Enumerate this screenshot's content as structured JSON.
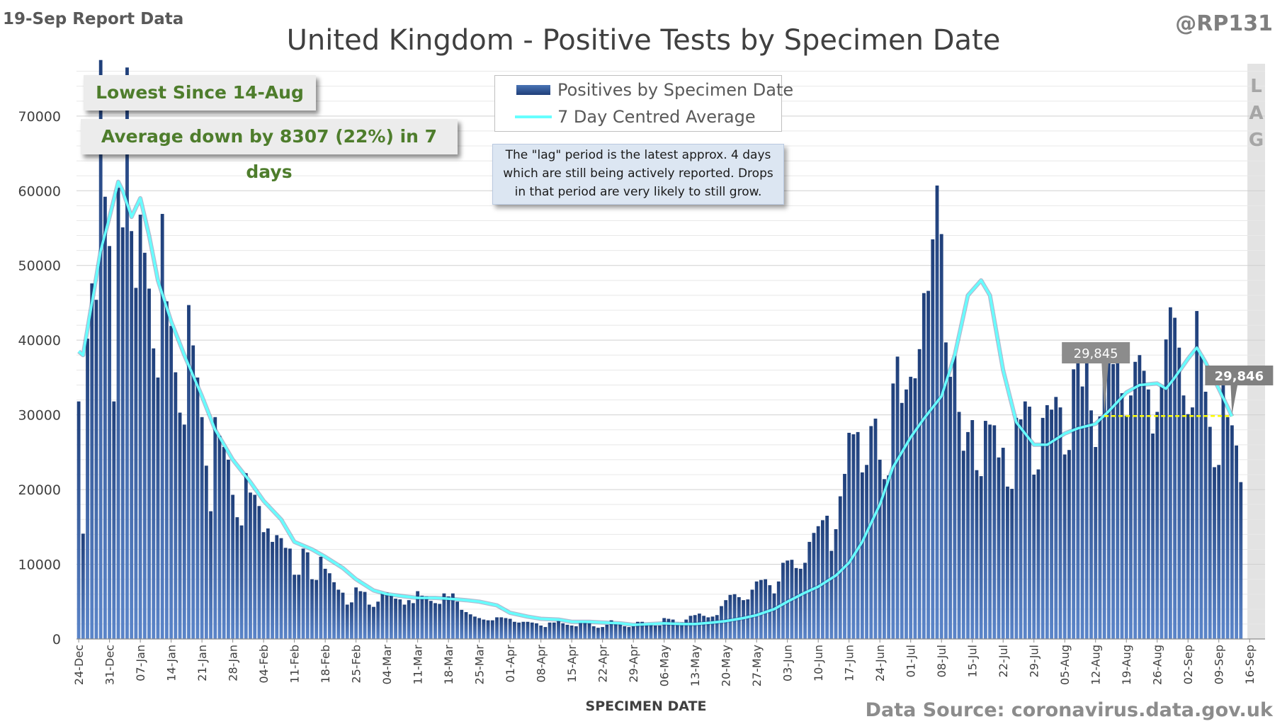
{
  "header": {
    "report_label": "19-Sep Report Data",
    "handle": "@RP131"
  },
  "callouts": {
    "lowest": "Lowest Since 14-Aug",
    "average": "Average down by 8307 (22%) in 7 days"
  },
  "note": {
    "lines": [
      "The \"lag\" period is the latest approx. 4 days",
      "which are still being actively reported. Drops",
      "in that period are very likely to still grow."
    ]
  },
  "lag_letters": [
    "L",
    "A",
    "G"
  ],
  "footer": {
    "source": "Data Source: coronavirus.data.gov.uk"
  },
  "colors": {
    "bar": "#2e5597",
    "average_line": "#66ffff",
    "reference_line": "#ffff00",
    "lag_band": "#d9d9d9"
  },
  "chart_data": {
    "type": "bar",
    "title": "United Kingdom - Positive Tests by Specimen Date",
    "xlabel": "SPECIMEN DATE",
    "ylabel": "",
    "ylim": [
      0,
      77000
    ],
    "yticks": [
      0,
      10000,
      20000,
      30000,
      40000,
      50000,
      60000,
      70000
    ],
    "x_start": "24-Dec",
    "x_end": "19-Sep",
    "x_tick_labels": [
      "24-Dec",
      "31-Dec",
      "07-Jan",
      "14-Jan",
      "21-Jan",
      "28-Jan",
      "04-Feb",
      "11-Feb",
      "18-Feb",
      "25-Feb",
      "04-Mar",
      "11-Mar",
      "18-Mar",
      "25-Mar",
      "01-Apr",
      "08-Apr",
      "15-Apr",
      "22-Apr",
      "29-Apr",
      "06-May",
      "13-May",
      "20-May",
      "27-May",
      "03-Jun",
      "10-Jun",
      "17-Jun",
      "24-Jun",
      "01-Jul",
      "08-Jul",
      "15-Jul",
      "22-Jul",
      "29-Jul",
      "05-Aug",
      "12-Aug",
      "19-Aug",
      "26-Aug",
      "02-Sep",
      "09-Sep",
      "16-Sep"
    ],
    "grid": true,
    "legend_position": "top-center",
    "series": [
      {
        "name": "Positives by Specimen Date",
        "type": "bar",
        "values": [
          31800,
          14100,
          40200,
          47600,
          45400,
          77500,
          59200,
          52600,
          31800,
          60400,
          55100,
          76500,
          54600,
          47000,
          56800,
          51700,
          46900,
          38900,
          35000,
          56900,
          45200,
          41900,
          35700,
          30300,
          28700,
          44700,
          39300,
          35000,
          29700,
          23200,
          17100,
          29700,
          27200,
          25700,
          24000,
          19300,
          16300,
          15200,
          22200,
          19600,
          19300,
          17800,
          14300,
          14800,
          13000,
          13900,
          13500,
          12200,
          12100,
          8600,
          8600,
          12100,
          11600,
          8000,
          7900,
          11000,
          9400,
          8800,
          7600,
          6600,
          6200,
          4600,
          4900,
          6900,
          6400,
          6300,
          4600,
          4300,
          5000,
          6200,
          6200,
          5900,
          5400,
          5300,
          4600,
          5200,
          4800,
          6400,
          5800,
          5700,
          5100,
          4800,
          4700,
          6100,
          5700,
          6100,
          5000,
          3900,
          3600,
          3300,
          3000,
          2800,
          2600,
          2500,
          2500,
          2900,
          2900,
          2800,
          2700,
          2300,
          2200,
          2300,
          2300,
          2200,
          2100,
          1800,
          1600,
          2200,
          2200,
          2400,
          2100,
          1900,
          1800,
          1700,
          2400,
          2300,
          2100,
          1700,
          1500,
          1600,
          1900,
          2500,
          2200,
          2100,
          1700,
          1600,
          1700,
          2300,
          2300,
          2100,
          1900,
          1800,
          1800,
          2800,
          2700,
          2600,
          2200,
          2200,
          2600,
          3100,
          3200,
          3400,
          3100,
          2900,
          3000,
          3200,
          4400,
          5200,
          5900,
          6000,
          5600,
          5200,
          5300,
          6600,
          7700,
          7900,
          8000,
          7200,
          6100,
          7700,
          10200,
          10500,
          10600,
          9500,
          9400,
          10200,
          13000,
          14200,
          15100,
          15900,
          16500,
          11800,
          14700,
          19100,
          22100,
          27600,
          27400,
          27700,
          22300,
          23300,
          28500,
          29500,
          24000,
          21400,
          21900,
          34200,
          37800,
          31600,
          33400,
          35100,
          34900,
          38800,
          46300,
          46600,
          53500,
          60700,
          54200,
          39700,
          35100,
          37900,
          30400,
          25200,
          27700,
          29300,
          22600,
          21800,
          29200,
          28700,
          28600,
          24300,
          25600,
          20400,
          20100,
          29600,
          29400,
          31800,
          31100,
          22000,
          22700,
          29600,
          31300,
          30700,
          32400,
          31000,
          24700,
          25300,
          36100,
          37200,
          33800,
          37900,
          30600,
          25700,
          29800,
          36800,
          38600,
          36800,
          37600,
          32900,
          29900,
          32600,
          37100,
          38000,
          35900,
          33400,
          27500,
          30400,
          33800,
          40100,
          44400,
          43000,
          39000,
          32600,
          30100,
          31000,
          43900,
          37900,
          33100,
          28400,
          23000,
          23300,
          34100,
          29700,
          28600,
          25900,
          21000
        ]
      },
      {
        "name": "7 Day Centred Average",
        "type": "line",
        "values": [
          {
            "x": "24-Dec",
            "y": 38500
          },
          {
            "x": "25-Dec",
            "y": 38000
          },
          {
            "x": "27-Dec",
            "y": 45000
          },
          {
            "x": "29-Dec",
            "y": 52000
          },
          {
            "x": "31-Dec",
            "y": 56500
          },
          {
            "x": "02-Jan",
            "y": 61200
          },
          {
            "x": "03-Jan",
            "y": 60000
          },
          {
            "x": "05-Jan",
            "y": 56500
          },
          {
            "x": "07-Jan",
            "y": 59000
          },
          {
            "x": "09-Jan",
            "y": 54000
          },
          {
            "x": "11-Jan",
            "y": 48000
          },
          {
            "x": "14-Jan",
            "y": 42500
          },
          {
            "x": "17-Jan",
            "y": 38000
          },
          {
            "x": "21-Jan",
            "y": 32500
          },
          {
            "x": "24-Jan",
            "y": 28000
          },
          {
            "x": "28-Jan",
            "y": 24000
          },
          {
            "x": "01-Feb",
            "y": 21000
          },
          {
            "x": "04-Feb",
            "y": 18500
          },
          {
            "x": "08-Feb",
            "y": 16000
          },
          {
            "x": "11-Feb",
            "y": 13000
          },
          {
            "x": "15-Feb",
            "y": 12000
          },
          {
            "x": "18-Feb",
            "y": 11000
          },
          {
            "x": "22-Feb",
            "y": 9500
          },
          {
            "x": "25-Feb",
            "y": 8000
          },
          {
            "x": "01-Mar",
            "y": 6500
          },
          {
            "x": "04-Mar",
            "y": 6000
          },
          {
            "x": "08-Mar",
            "y": 5700
          },
          {
            "x": "11-Mar",
            "y": 5500
          },
          {
            "x": "15-Mar",
            "y": 5500
          },
          {
            "x": "18-Mar",
            "y": 5400
          },
          {
            "x": "22-Mar",
            "y": 5200
          },
          {
            "x": "25-Mar",
            "y": 5000
          },
          {
            "x": "29-Mar",
            "y": 4500
          },
          {
            "x": "01-Apr",
            "y": 3500
          },
          {
            "x": "05-Apr",
            "y": 3000
          },
          {
            "x": "08-Apr",
            "y": 2700
          },
          {
            "x": "12-Apr",
            "y": 2600
          },
          {
            "x": "15-Apr",
            "y": 2300
          },
          {
            "x": "19-Apr",
            "y": 2300
          },
          {
            "x": "22-Apr",
            "y": 2200
          },
          {
            "x": "26-Apr",
            "y": 2100
          },
          {
            "x": "29-Apr",
            "y": 1900
          },
          {
            "x": "03-May",
            "y": 2000
          },
          {
            "x": "06-May",
            "y": 2100
          },
          {
            "x": "10-May",
            "y": 2000
          },
          {
            "x": "13-May",
            "y": 2000
          },
          {
            "x": "17-May",
            "y": 2200
          },
          {
            "x": "20-May",
            "y": 2400
          },
          {
            "x": "24-May",
            "y": 2800
          },
          {
            "x": "27-May",
            "y": 3200
          },
          {
            "x": "31-May",
            "y": 4000
          },
          {
            "x": "03-Jun",
            "y": 5000
          },
          {
            "x": "07-Jun",
            "y": 6200
          },
          {
            "x": "10-Jun",
            "y": 7000
          },
          {
            "x": "14-Jun",
            "y": 8500
          },
          {
            "x": "17-Jun",
            "y": 10200
          },
          {
            "x": "20-Jun",
            "y": 13000
          },
          {
            "x": "24-Jun",
            "y": 18000
          },
          {
            "x": "27-Jun",
            "y": 23000
          },
          {
            "x": "01-Jul",
            "y": 27000
          },
          {
            "x": "04-Jul",
            "y": 29500
          },
          {
            "x": "08-Jul",
            "y": 32500
          },
          {
            "x": "11-Jul",
            "y": 38000
          },
          {
            "x": "14-Jul",
            "y": 46000
          },
          {
            "x": "17-Jul",
            "y": 48000
          },
          {
            "x": "19-Jul",
            "y": 46000
          },
          {
            "x": "22-Jul",
            "y": 36000
          },
          {
            "x": "25-Jul",
            "y": 29000
          },
          {
            "x": "29-Jul",
            "y": 26000
          },
          {
            "x": "01-Aug",
            "y": 26000
          },
          {
            "x": "05-Aug",
            "y": 27500
          },
          {
            "x": "08-Aug",
            "y": 28200
          },
          {
            "x": "12-Aug",
            "y": 28800
          },
          {
            "x": "15-Aug",
            "y": 30500
          },
          {
            "x": "19-Aug",
            "y": 33000
          },
          {
            "x": "22-Aug",
            "y": 34000
          },
          {
            "x": "26-Aug",
            "y": 34200
          },
          {
            "x": "28-Aug",
            "y": 33500
          },
          {
            "x": "30-Aug",
            "y": 35000
          },
          {
            "x": "02-Sep",
            "y": 37500
          },
          {
            "x": "04-Sep",
            "y": 39000
          },
          {
            "x": "06-Sep",
            "y": 37000
          },
          {
            "x": "09-Sep",
            "y": 33500
          },
          {
            "x": "12-Sep",
            "y": 29800
          }
        ]
      }
    ],
    "reference_line": {
      "from": "14-Aug",
      "to": "12-Sep",
      "y": 29845
    },
    "annotations": [
      {
        "label": "29,845",
        "x": "14-Aug",
        "y": 29845
      },
      {
        "label": "29,846",
        "x": "12-Sep",
        "y": 29846
      }
    ],
    "lag_period": {
      "from": "16-Sep",
      "to": "19-Sep"
    }
  }
}
